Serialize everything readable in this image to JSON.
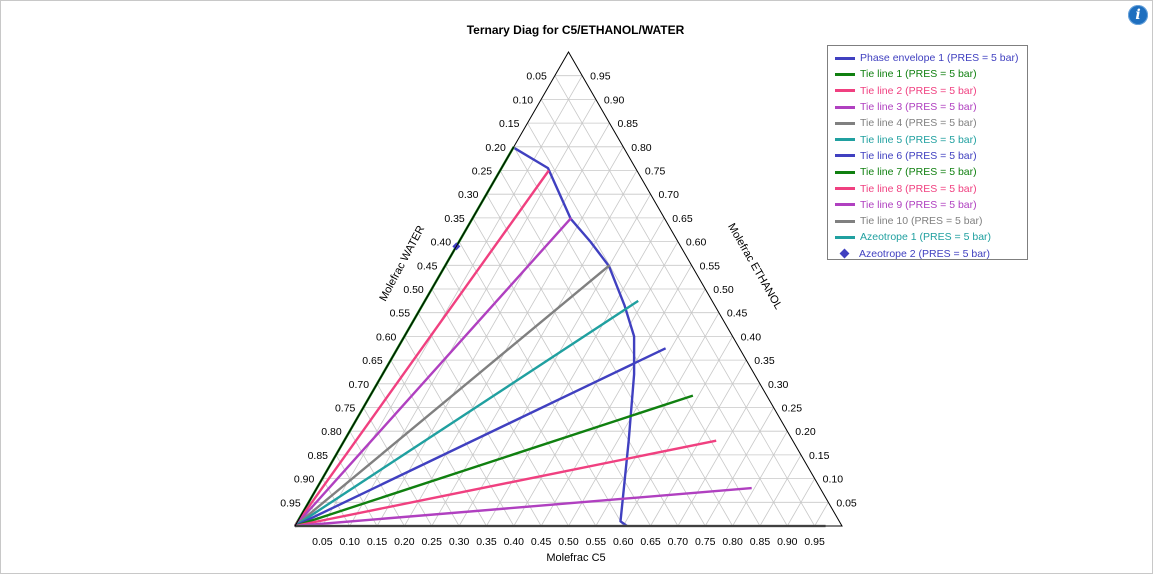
{
  "info_icon": {
    "symbol": "i",
    "icon": "info-icon",
    "color": "#1e6fbf"
  },
  "chart_data": {
    "type": "ternary",
    "title": "Ternary Diag for C5/ETHANOL/WATER",
    "axes": {
      "bottom": {
        "label": "Molefrac C5"
      },
      "right": {
        "label": "Molefrac ETHANOL"
      },
      "left": {
        "label": "Molefrac WATER"
      }
    },
    "tick_values": [
      0.05,
      0.1,
      0.15,
      0.2,
      0.25,
      0.3,
      0.35,
      0.4,
      0.45,
      0.5,
      0.55,
      0.6,
      0.65,
      0.7,
      0.75,
      0.8,
      0.85,
      0.9,
      0.95
    ],
    "grid": true,
    "legend_position": "top-right",
    "series": [
      {
        "name": "Phase envelope 1 (PRES = 5  bar)",
        "type": "line",
        "color": "#4040c0",
        "points": [
          [
            0.003,
            0.797
          ],
          [
            0.085,
            0.755
          ],
          [
            0.18,
            0.648
          ],
          [
            0.24,
            0.6
          ],
          [
            0.3,
            0.548
          ],
          [
            0.37,
            0.465
          ],
          [
            0.42,
            0.4
          ],
          [
            0.46,
            0.32
          ],
          [
            0.52,
            0.18
          ],
          [
            0.59,
            0.01
          ],
          [
            0.607,
            0.0
          ]
        ]
      },
      {
        "name": "Tie line 1 (PRES = 5  bar)",
        "type": "line",
        "color": "#108010",
        "points": [
          [
            0.0,
            0.0
          ],
          [
            0.0,
            0.8
          ]
        ]
      },
      {
        "name": "Tie line 2 (PRES = 5  bar)",
        "type": "line",
        "color": "#f04080",
        "points": [
          [
            0.0,
            0.0
          ],
          [
            0.089,
            0.75
          ]
        ]
      },
      {
        "name": "Tie line 3 (PRES = 5  bar)",
        "type": "line",
        "color": "#b040c0",
        "points": [
          [
            0.0,
            0.0
          ],
          [
            0.18,
            0.65
          ]
        ]
      },
      {
        "name": "Tie line 4 (PRES = 5  bar)",
        "type": "line",
        "color": "#808080",
        "points": [
          [
            0.0,
            0.0
          ],
          [
            0.3,
            0.55
          ]
        ]
      },
      {
        "name": "Tie line 5 (PRES = 5  bar)",
        "type": "line",
        "color": "#20a0a0",
        "points": [
          [
            0.0,
            0.0
          ],
          [
            0.39,
            0.475
          ]
        ]
      },
      {
        "name": "Tie line 6 (PRES = 5  bar)",
        "type": "line",
        "color": "#4040c0",
        "points": [
          [
            0.0,
            0.0
          ],
          [
            0.49,
            0.375
          ]
        ]
      },
      {
        "name": "Tie line 7 (PRES = 5  bar)",
        "type": "line",
        "color": "#108010",
        "points": [
          [
            0.0,
            0.0
          ],
          [
            0.59,
            0.275
          ]
        ]
      },
      {
        "name": "Tie line 8 (PRES = 5  bar)",
        "type": "line",
        "color": "#f04080",
        "points": [
          [
            0.0,
            0.0
          ],
          [
            0.68,
            0.18
          ]
        ]
      },
      {
        "name": "Tie line 9 (PRES = 5  bar)",
        "type": "line",
        "color": "#b040c0",
        "points": [
          [
            0.0,
            0.0
          ],
          [
            0.795,
            0.08
          ]
        ]
      },
      {
        "name": "Tie line 10 (PRES = 5  bar)",
        "type": "line",
        "color": "#808080",
        "points": [
          [
            0.0,
            0.0
          ],
          [
            0.97,
            0.0
          ]
        ]
      },
      {
        "name": "Azeotrope 1 (PRES = 5  bar)",
        "type": "line",
        "color": "#20a0a0",
        "points": []
      },
      {
        "name": "Azeotrope 2 (PRES = 5  bar)",
        "type": "marker",
        "color": "#4040c0",
        "points": [
          [
            0.0,
            0.59
          ]
        ]
      }
    ]
  }
}
